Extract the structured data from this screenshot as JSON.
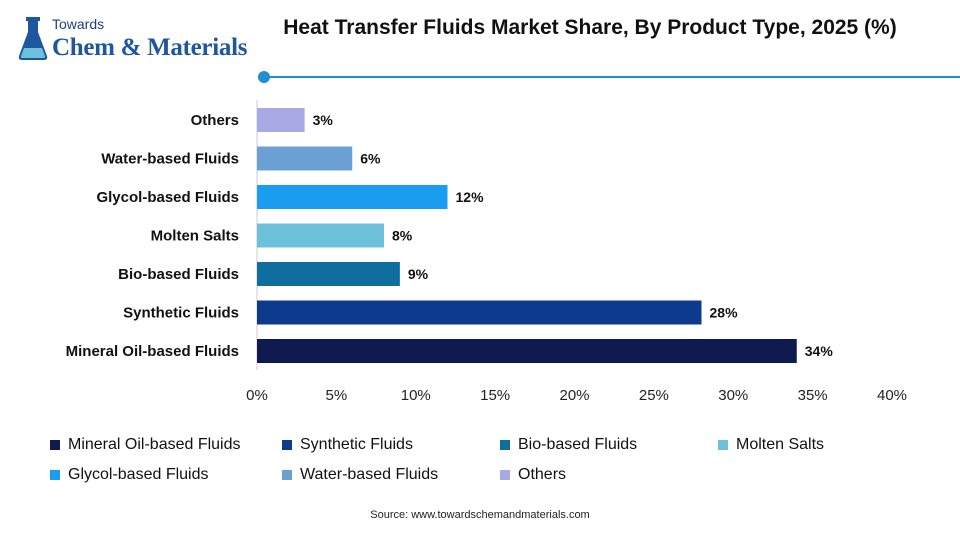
{
  "logo": {
    "line1": "Towards",
    "line2": "Chem & Materials"
  },
  "title": "Heat Transfer Fluids Market Share, By Product Type, 2025 (%)",
  "source": "Source: www.towardschemandmaterials.com",
  "colors": {
    "accent": "#1f8fd0",
    "Mineral Oil-based Fluids": "#0f1b4f",
    "Synthetic Fluids": "#0d3a8c",
    "Bio-based Fluids": "#0f6e9e",
    "Molten Salts": "#6cc0da",
    "Glycol-based Fluids": "#1a9cf0",
    "Water-based Fluids": "#6aa0d4",
    "Others": "#a9a9e6"
  },
  "chart_data": {
    "type": "bar",
    "orientation": "horizontal",
    "title": "Heat Transfer Fluids Market Share, By Product Type, 2025 (%)",
    "categories": [
      "Others",
      "Water-based Fluids",
      "Glycol-based Fluids",
      "Molten Salts",
      "Bio-based Fluids",
      "Synthetic Fluids",
      "Mineral Oil-based Fluids"
    ],
    "values": [
      3,
      6,
      12,
      8,
      9,
      28,
      34
    ],
    "value_labels": [
      "3%",
      "6%",
      "12%",
      "8%",
      "9%",
      "28%",
      "34%"
    ],
    "xlim": [
      0,
      40
    ],
    "xticks": [
      0,
      5,
      10,
      15,
      20,
      25,
      30,
      35,
      40
    ],
    "xtick_labels": [
      "0%",
      "5%",
      "10%",
      "15%",
      "20%",
      "25%",
      "30%",
      "35%",
      "40%"
    ],
    "grid": false,
    "legend_position": "bottom",
    "legend": [
      "Mineral Oil-based Fluids",
      "Synthetic Fluids",
      "Bio-based Fluids",
      "Molten Salts",
      "Glycol-based Fluids",
      "Water-based Fluids",
      "Others"
    ]
  }
}
